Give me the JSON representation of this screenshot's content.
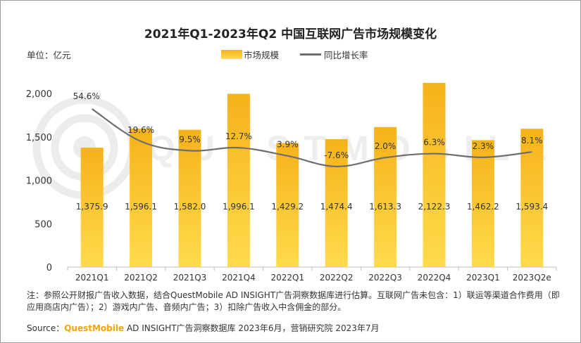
{
  "title": "2021年Q1-2023年Q2 中国互联网广告市场规模变化",
  "unit": "单位：亿元",
  "legend": {
    "bar": "市场规模",
    "line": "同比增长率"
  },
  "note": "注：参照公开财报广告收入数据，结合QuestMobile AD INSIGHT广告洞察数据库进行估算。互联网广告未包含：1）联运等渠道合作费用（即应用商店内广告）；2）游戏内广告、音频内广告；3）扣除广告收入中含佣金的部分。",
  "source": {
    "prefix": "Source：",
    "brand": "QuestMobile",
    "rest": " AD INSIGHT广告洞察数据库 2023年6月，营销研究院 2023年7月"
  },
  "watermark": "QUESTMOBILE",
  "colors": {
    "bar_top": "#f6b21a",
    "bar_bottom": "#ffdb4c",
    "line": "#6e6e6e",
    "brand": "#f4a400"
  },
  "chart_data": {
    "type": "bar",
    "categories": [
      "2021Q1",
      "2021Q2",
      "2021Q3",
      "2021Q4",
      "2022Q1",
      "2022Q2",
      "2022Q3",
      "2022Q4",
      "2023Q1",
      "2023Q2e"
    ],
    "ylim": [
      0,
      2000
    ],
    "yticks": [
      "0",
      "500",
      "1,000",
      "1,500",
      "2,000"
    ],
    "series": [
      {
        "name": "市场规模",
        "type": "bar",
        "values": [
          1375.9,
          1596.1,
          1582.0,
          1996.1,
          1429.2,
          1474.4,
          1613.3,
          2122.3,
          1462.2,
          1593.4
        ],
        "labels": [
          "1,375.9",
          "1,596.1",
          "1,582.0",
          "1,996.1",
          "1,429.2",
          "1,474.4",
          "1,613.3",
          "2,122.3",
          "1,462.2",
          "1,593.4"
        ]
      },
      {
        "name": "同比增长率",
        "type": "line",
        "values": [
          54.6,
          19.6,
          9.5,
          12.7,
          3.9,
          -7.6,
          2.0,
          6.3,
          2.3,
          8.1
        ],
        "labels": [
          "54.6%",
          "19.6%",
          "9.5%",
          "12.7%",
          "3.9%",
          "-7.6%",
          "2.0%",
          "6.3%",
          "2.3%",
          "8.1%"
        ]
      }
    ]
  }
}
